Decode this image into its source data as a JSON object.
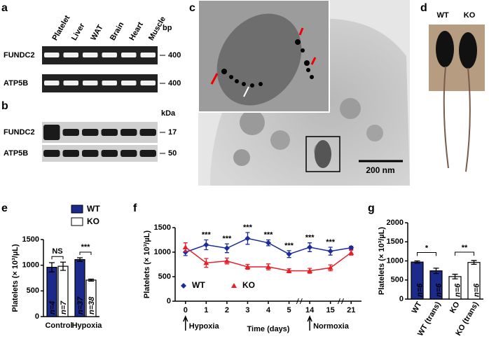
{
  "panels": {
    "a": {
      "letter": "a",
      "lanes": [
        "Platelet",
        "Liver",
        "WAT",
        "Brain",
        "Heart",
        "Muscle"
      ],
      "rows": [
        "FUNDC2",
        "ATP5B"
      ],
      "unit": "bp",
      "markers": [
        "400",
        "400"
      ]
    },
    "b": {
      "letter": "b",
      "rows": [
        "FUNDC2",
        "ATP5B"
      ],
      "unit": "kDa",
      "markers": [
        "17",
        "50"
      ]
    },
    "c": {
      "letter": "c",
      "scale_bar": "200 nm"
    },
    "d": {
      "letter": "d",
      "labels": [
        "WT",
        "KO"
      ]
    }
  },
  "chart_data": [
    {
      "type": "bar",
      "letter": "e",
      "y_label": "Platelets (× 10³/µL)",
      "categories": [
        "Control",
        "Hypoxia"
      ],
      "series": [
        {
          "name": "WT",
          "color": "#1c2a8c",
          "values": [
            960,
            1110
          ],
          "errors": [
            90,
            35
          ],
          "n_labels": [
            "n=4",
            "n=37"
          ]
        },
        {
          "name": "KO",
          "color": "#ffffff",
          "values": [
            980,
            710
          ],
          "errors": [
            80,
            20
          ],
          "n_labels": [
            "n=7",
            "n=38"
          ]
        }
      ],
      "annotations": [
        "NS",
        "***"
      ],
      "ylim": [
        0,
        1500
      ],
      "yticks": [
        0,
        500,
        1000,
        1500
      ]
    },
    {
      "type": "line",
      "letter": "f",
      "y_label": "Platelets (× 10³/µL)",
      "x_label": "Time (days)",
      "categories": [
        "0",
        "1",
        "2",
        "3",
        "4",
        "5",
        "14",
        "15",
        "21"
      ],
      "series": [
        {
          "name": "WT",
          "color": "#1c2a9c",
          "marker": "diamond",
          "values": [
            1000,
            1150,
            1080,
            1280,
            1190,
            960,
            1100,
            1020,
            1090
          ],
          "errors": [
            70,
            100,
            90,
            120,
            60,
            70,
            90,
            80,
            30
          ]
        },
        {
          "name": "KO",
          "color": "#e8202a",
          "marker": "triangle",
          "values": [
            1100,
            780,
            820,
            700,
            700,
            620,
            620,
            680,
            990
          ],
          "errors": [
            90,
            90,
            60,
            50,
            60,
            40,
            50,
            60,
            50
          ]
        }
      ],
      "annotations": [
        null,
        "***",
        "***",
        "***",
        "***",
        "***",
        "***",
        "***",
        null
      ],
      "events": [
        "Hypoxia",
        null,
        null,
        null,
        null,
        null,
        "Normoxia",
        null,
        null
      ],
      "ylim": [
        0,
        1500
      ],
      "yticks": [
        0,
        500,
        1000,
        1500
      ]
    },
    {
      "type": "bar",
      "letter": "g",
      "y_label": "Platelets (× 10³/µL)",
      "categories": [
        "WT",
        "WT (trans)",
        "KO",
        "KO (trans)"
      ],
      "values": [
        970,
        740,
        590,
        960
      ],
      "errors": [
        30,
        70,
        60,
        50
      ],
      "colors": [
        "#1c2a8c",
        "#1c2a8c",
        "#ffffff",
        "#ffffff"
      ],
      "n_labels": [
        "n=6",
        "n=6",
        "n=6",
        "n=6"
      ],
      "annotations": [
        "*",
        "**"
      ],
      "ylim": [
        0,
        2000
      ],
      "yticks": [
        0,
        500,
        1000,
        1500,
        2000
      ]
    }
  ]
}
